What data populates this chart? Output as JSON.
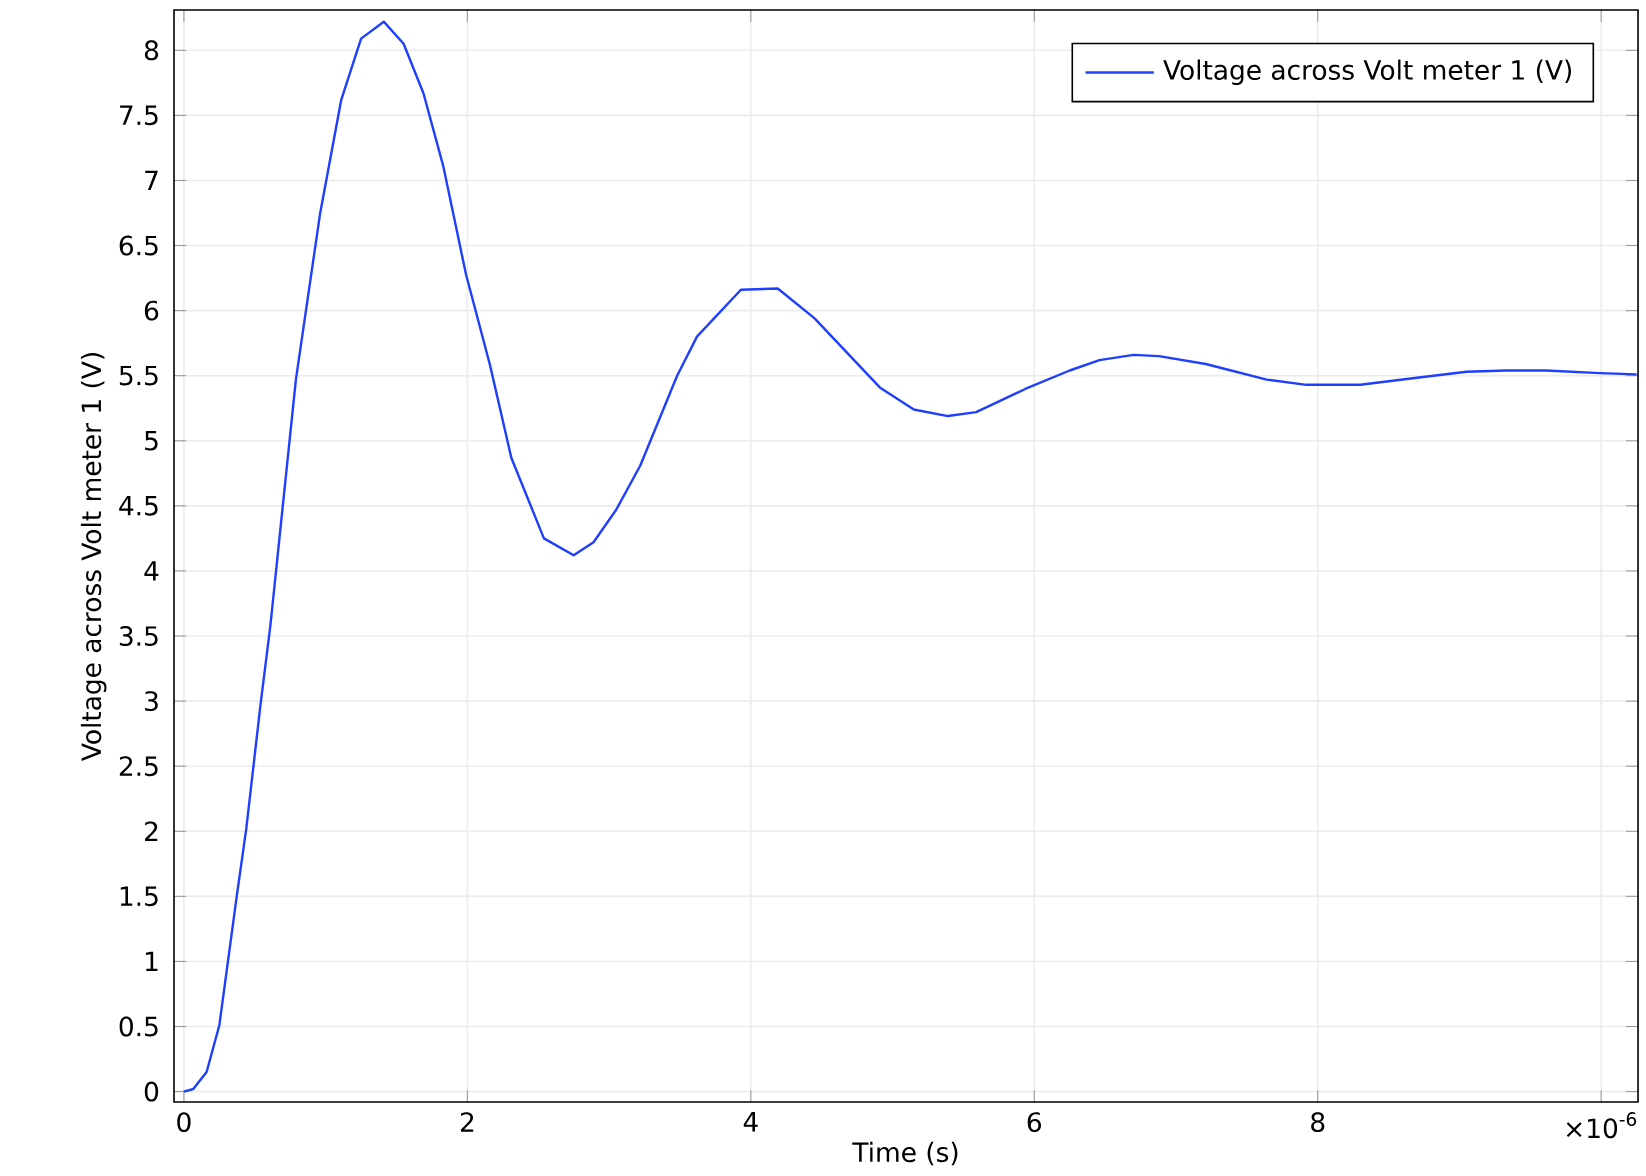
{
  "chart_data": {
    "type": "line",
    "xlabel": "Time (s)",
    "ylabel": "Voltage across Volt meter 1 (V)",
    "xlim": [
      -0.07,
      10.26
    ],
    "ylim": [
      -0.08,
      8.31
    ],
    "xticks": [
      0,
      2,
      4,
      6,
      8,
      {
        "value": 10,
        "label": "×10$^{-6}$"
      }
    ],
    "yticks": [
      0,
      0.5,
      1,
      1.5,
      2,
      2.5,
      3,
      3.5,
      4,
      4.5,
      5,
      5.5,
      6,
      6.5,
      7,
      7.5,
      8
    ],
    "grid": true,
    "legend": "top right",
    "marker": "none",
    "line_style": "solid",
    "series": [
      {
        "name": "Voltage across Volt meter 1 (V)",
        "color": "#1f3fff",
        "x": [
          0,
          0.066,
          0.16,
          0.25,
          0.37,
          0.44,
          0.54,
          0.61,
          0.79,
          0.96,
          1.11,
          1.25,
          1.41,
          1.55,
          1.69,
          1.83,
          1.99,
          2.16,
          2.31,
          2.54,
          2.75,
          2.89,
          3.05,
          3.22,
          3.48,
          3.62,
          3.93,
          4.19,
          4.45,
          4.91,
          5.15,
          5.39,
          5.59,
          5.94,
          6.25,
          6.46,
          6.7,
          6.88,
          7.21,
          7.64,
          7.92,
          8.3,
          8.67,
          9.05,
          9.33,
          9.61,
          9.99,
          10.25
        ],
        "values": [
          0,
          0.02,
          0.15,
          0.51,
          1.48,
          2.02,
          2.97,
          3.58,
          5.47,
          6.74,
          7.62,
          8.09,
          8.22,
          8.05,
          7.67,
          7.11,
          6.28,
          5.58,
          4.87,
          4.25,
          4.12,
          4.22,
          4.47,
          4.81,
          5.5,
          5.8,
          6.16,
          6.17,
          5.94,
          5.41,
          5.24,
          5.19,
          5.22,
          5.4,
          5.54,
          5.62,
          5.66,
          5.65,
          5.59,
          5.47,
          5.43,
          5.43,
          5.48,
          5.53,
          5.54,
          5.54,
          5.52,
          5.51
        ]
      }
    ]
  }
}
